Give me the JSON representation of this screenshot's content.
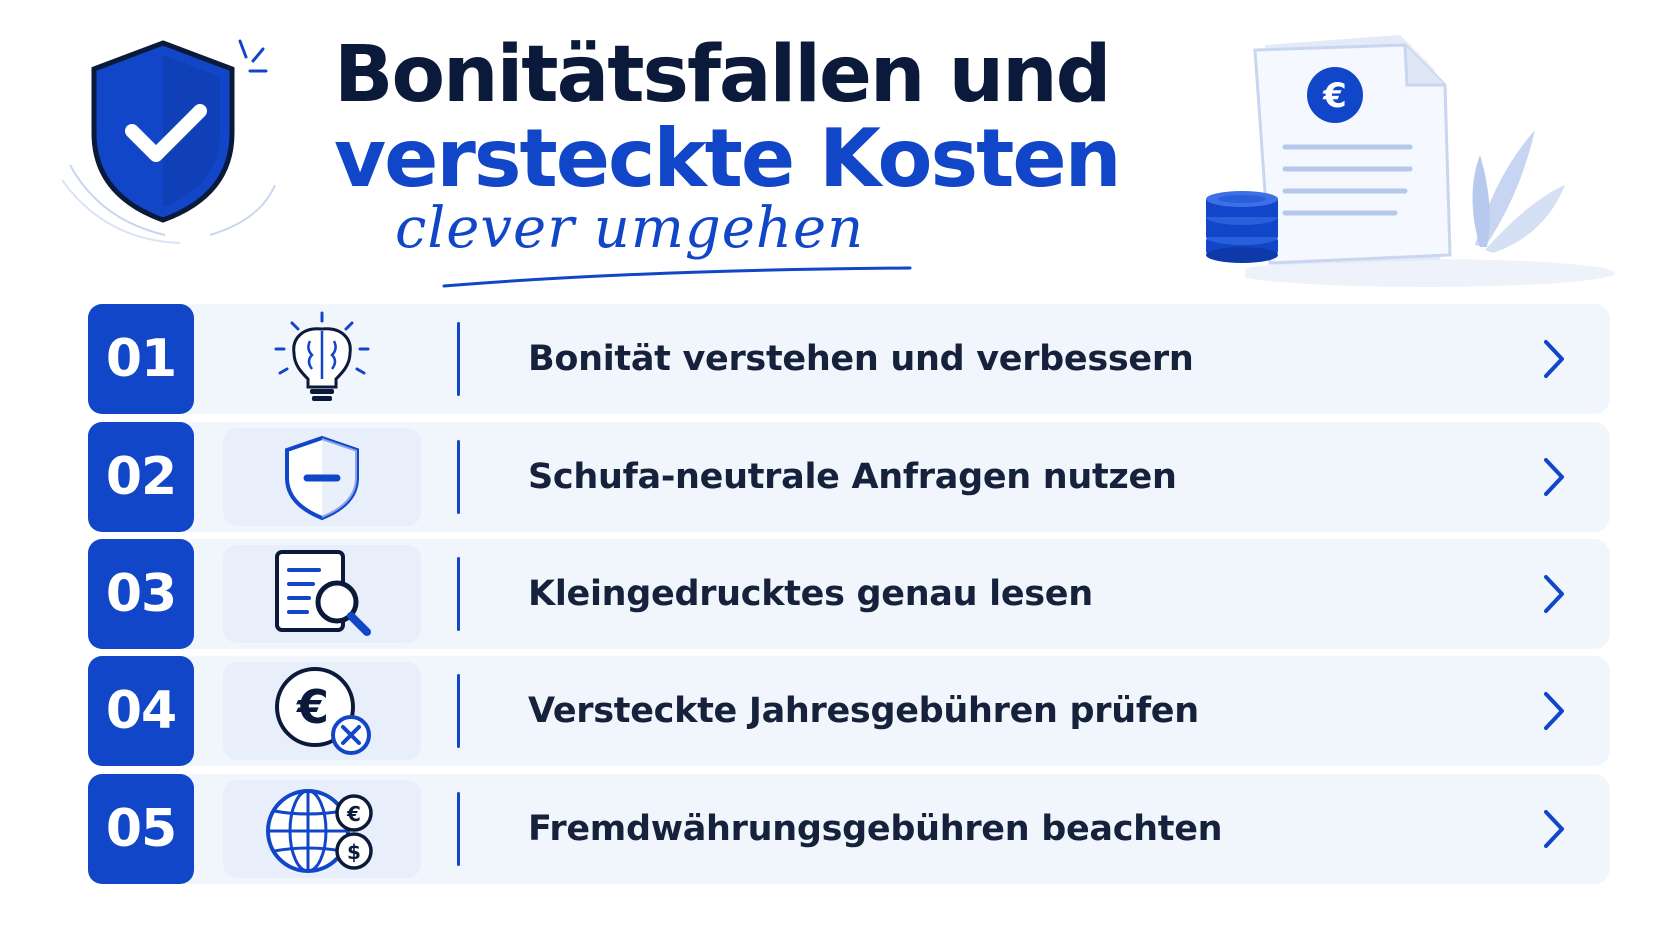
{
  "header": {
    "title_line1": "Bonitätsfallen und",
    "title_line2": "versteckte Kosten",
    "subtitle": "clever umgehen",
    "euro_symbol": "€"
  },
  "items": [
    {
      "number": "01",
      "label": "Bonität verstehen und verbessern",
      "icon": "brain-lightbulb-icon"
    },
    {
      "number": "02",
      "label": "Schufa-neutrale Anfragen nutzen",
      "icon": "shield-minus-icon"
    },
    {
      "number": "03",
      "label": "Kleingedrucktes genau lesen",
      "icon": "document-search-icon"
    },
    {
      "number": "04",
      "label": "Versteckte Jahresgebühren prüfen",
      "icon": "euro-cancel-icon"
    },
    {
      "number": "05",
      "label": "Fremdwährungsgebühren beachten",
      "icon": "globe-currency-icon"
    }
  ],
  "colors": {
    "accent": "#1146c8",
    "title_dark": "#0b1a3a",
    "row_bg": "#f1f5fc",
    "icon_bg": "#e9effa"
  },
  "icons": {
    "euro": "€",
    "dollar": "$",
    "cancel": "×"
  }
}
